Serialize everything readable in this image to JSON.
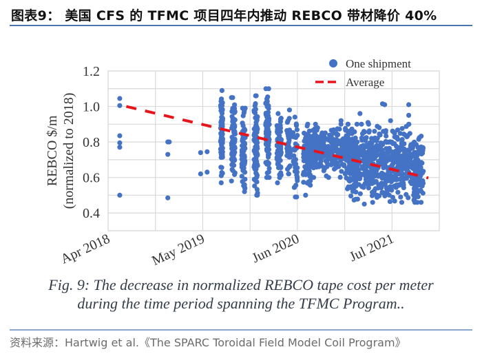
{
  "header": {
    "title": "图表9： 美国 CFS 的 TFMC 项目四年内推动 REBCO 带材降价 40%"
  },
  "caption": {
    "line1": "Fig. 9: The decrease in normalized REBCO tape cost per meter",
    "line2": "during the time period spanning the TFMC Program.."
  },
  "source": {
    "text": "资料来源：Hartwig et al.《The SPARC Toroidal Field Model Coil Program》"
  },
  "colors": {
    "point": "#4472c4",
    "average": "#e8141c",
    "grid": "#d9d9d9",
    "title_rule": "#4a74b0"
  },
  "chart_data": {
    "type": "scatter",
    "title": "",
    "xlabel": "",
    "ylabel": "REBCO $/m",
    "ylabel2": "(normalized to 2018)",
    "x_unit": "months since Apr 2018",
    "xlim": [
      0,
      45.5
    ],
    "ylim": [
      0.3,
      1.2
    ],
    "x_ticks": [
      {
        "month": 0,
        "label": "Apr 2018"
      },
      {
        "month": 13,
        "label": "May 2019"
      },
      {
        "month": 26,
        "label": "Jun 2020"
      },
      {
        "month": 39,
        "label": "Jul 2021"
      }
    ],
    "x_grid_step_months": 6.5,
    "y_ticks": [
      {
        "value": 1.2,
        "label": "1.2"
      },
      {
        "value": 1.0,
        "label": "1.0"
      },
      {
        "value": 0.8,
        "label": "0.8"
      },
      {
        "value": 0.6,
        "label": "0.6"
      },
      {
        "value": 0.4,
        "label": "0.4"
      }
    ],
    "y_grid_step": 0.1,
    "grid": true,
    "legend": {
      "placement": "top-right",
      "entries": [
        {
          "label": "One shipment",
          "type": "point"
        },
        {
          "label": "Average",
          "type": "dashed-line"
        }
      ]
    },
    "series": [
      {
        "name": "One shipment",
        "points": [
          [
            1.6,
            1.045
          ],
          [
            1.6,
            1.005
          ],
          [
            1.6,
            0.835
          ],
          [
            1.6,
            0.795
          ],
          [
            1.6,
            0.77
          ],
          [
            1.6,
            0.5
          ],
          [
            8.2,
            0.8
          ],
          [
            8.4,
            0.8
          ],
          [
            8.2,
            0.73
          ],
          [
            8.2,
            0.485
          ],
          [
            12.7,
            0.74
          ],
          [
            13.6,
            0.745
          ],
          [
            12.7,
            0.62
          ],
          [
            13.6,
            0.63
          ]
        ],
        "clusters": [
          {
            "month": 15.6,
            "count": 80,
            "min": 0.57,
            "max": 1.09,
            "spread": 0.15
          },
          {
            "month": 17.2,
            "count": 80,
            "min": 0.58,
            "max": 1.05,
            "spread": 0.25
          },
          {
            "month": 18.6,
            "count": 70,
            "min": 0.52,
            "max": 0.99,
            "spread": 0.25
          },
          {
            "month": 20.3,
            "count": 90,
            "min": 0.5,
            "max": 1.06,
            "spread": 0.25
          },
          {
            "month": 21.9,
            "count": 90,
            "min": 0.6,
            "max": 1.1,
            "spread": 0.25
          },
          {
            "month": 23.5,
            "count": 70,
            "min": 0.57,
            "max": 0.96,
            "spread": 0.3
          },
          {
            "month": 24.8,
            "count": 40,
            "min": 0.62,
            "max": 0.98,
            "spread": 0.3
          },
          {
            "month": 25.7,
            "count": 40,
            "min": 0.49,
            "max": 0.94,
            "spread": 0.3
          },
          {
            "month": 27.3,
            "count": 60,
            "min": 0.5,
            "max": 0.89,
            "spread": 0.5
          },
          {
            "month": 28.4,
            "count": 40,
            "min": 0.6,
            "max": 0.88,
            "spread": 0.4
          },
          {
            "month": 30.5,
            "count": 300,
            "min": 0.6,
            "max": 0.9,
            "spread": 3.4
          },
          {
            "month": 38.0,
            "count": 700,
            "min": 0.46,
            "max": 0.9,
            "spread": 5.3
          },
          {
            "month": 42.3,
            "count": 25,
            "min": 0.48,
            "max": 0.61,
            "spread": 0.3
          }
        ],
        "outliers": [
          [
            34.6,
            0.96
          ],
          [
            37.7,
            1.015
          ],
          [
            38.0,
            1.01
          ],
          [
            41.3,
            1.01
          ],
          [
            41.3,
            0.95
          ],
          [
            36.6,
            0.86
          ],
          [
            35.7,
            0.91
          ],
          [
            38.8,
            0.92
          ],
          [
            32.0,
            0.92
          ],
          [
            33.8,
            0.56
          ],
          [
            35.2,
            0.45
          ],
          [
            36.9,
            0.5
          ]
        ]
      },
      {
        "name": "Average",
        "type": "line",
        "style": "dashed",
        "x": [
          2.5,
          44.0
        ],
        "y": [
          1.0,
          0.597
        ]
      }
    ]
  }
}
